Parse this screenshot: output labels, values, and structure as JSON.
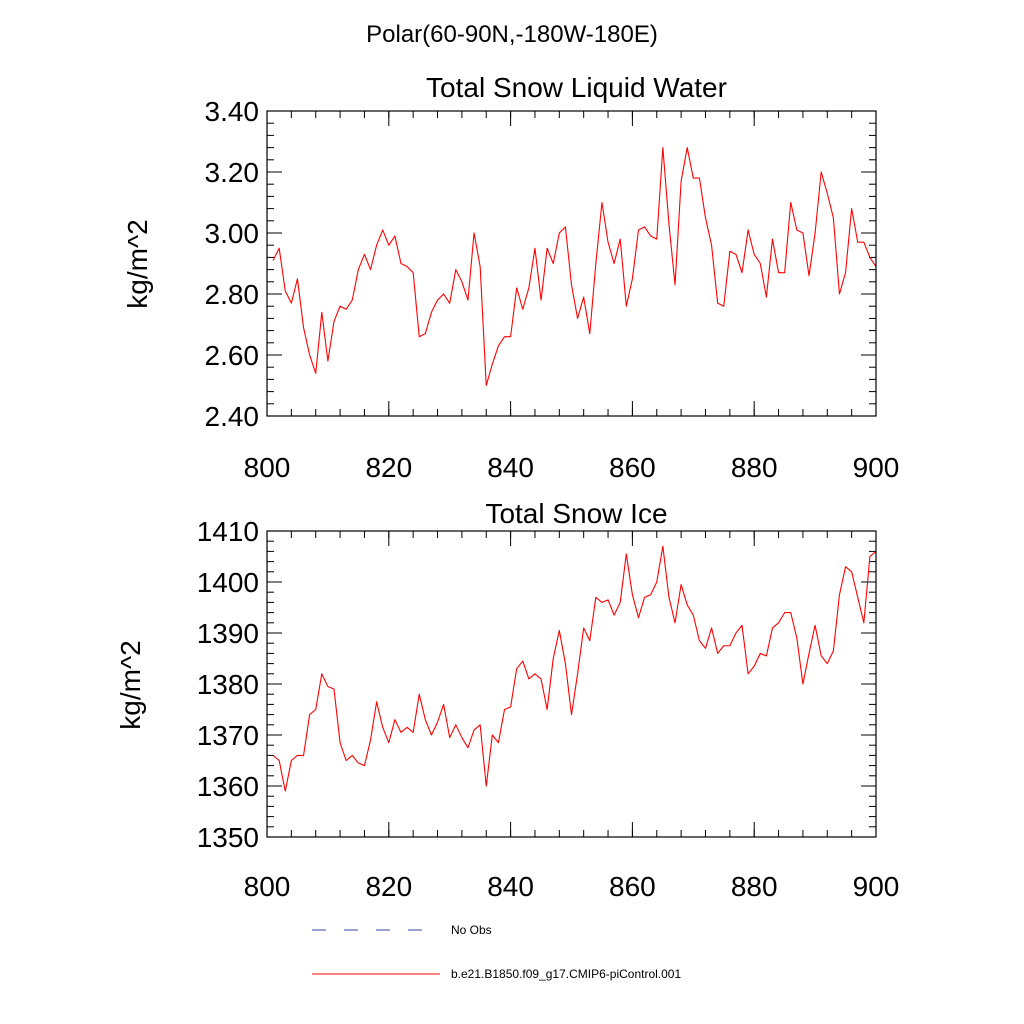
{
  "page_title": "Polar(60-90N,-180W-180E)",
  "colors": {
    "series": "#ff0000",
    "obs": "#3b3bb0",
    "axis": "#000000"
  },
  "legend": {
    "obs_label": "No Obs",
    "model_label": "b.e21.B1850.f09_g17.CMIP6-piControl.001"
  },
  "chart_data": [
    {
      "type": "line",
      "title": "Total Snow Liquid Water",
      "xlabel": "",
      "ylabel": "kg/m^2",
      "xlim": [
        800,
        900
      ],
      "ylim": [
        2.4,
        3.4
      ],
      "xticks": [
        800,
        820,
        840,
        860,
        880,
        900
      ],
      "xtick_labels": [
        "800",
        "820",
        "840",
        "860",
        "880",
        "900"
      ],
      "yticks": [
        2.4,
        2.6,
        2.8,
        3.0,
        3.2,
        3.4
      ],
      "ytick_labels": [
        "2.40",
        "2.60",
        "2.80",
        "3.00",
        "3.20",
        "3.40"
      ],
      "series": [
        {
          "name": "b.e21.B1850.f09_g17.CMIP6-piControl.001",
          "x": [
            801,
            802,
            803,
            804,
            805,
            806,
            807,
            808,
            809,
            810,
            811,
            812,
            813,
            814,
            815,
            816,
            817,
            818,
            819,
            820,
            821,
            822,
            823,
            824,
            825,
            826,
            827,
            828,
            829,
            830,
            831,
            832,
            833,
            834,
            835,
            836,
            837,
            838,
            839,
            840,
            841,
            842,
            843,
            844,
            845,
            846,
            847,
            848,
            849,
            850,
            851,
            852,
            853,
            854,
            855,
            856,
            857,
            858,
            859,
            860,
            861,
            862,
            863,
            864,
            865,
            866,
            867,
            868,
            869,
            870,
            871,
            872,
            873,
            874,
            875,
            876,
            877,
            878,
            879,
            880,
            881,
            882,
            883,
            884,
            885,
            886,
            887,
            888,
            889,
            890,
            891,
            892,
            893,
            894,
            895,
            896,
            897,
            898,
            899,
            900
          ],
          "values": [
            2.91,
            2.95,
            2.81,
            2.77,
            2.85,
            2.69,
            2.6,
            2.54,
            2.74,
            2.58,
            2.71,
            2.76,
            2.75,
            2.78,
            2.88,
            2.93,
            2.88,
            2.96,
            3.01,
            2.96,
            2.99,
            2.9,
            2.89,
            2.87,
            2.66,
            2.67,
            2.74,
            2.78,
            2.8,
            2.77,
            2.88,
            2.84,
            2.78,
            3.0,
            2.89,
            2.5,
            2.57,
            2.63,
            2.66,
            2.66,
            2.82,
            2.75,
            2.82,
            2.95,
            2.78,
            2.95,
            2.9,
            3.0,
            3.02,
            2.83,
            2.72,
            2.79,
            2.67,
            2.9,
            3.1,
            2.97,
            2.9,
            2.98,
            2.76,
            2.85,
            3.01,
            3.02,
            2.99,
            2.98,
            3.28,
            3.03,
            2.83,
            3.17,
            3.28,
            3.18,
            3.18,
            3.05,
            2.96,
            2.77,
            2.76,
            2.94,
            2.93,
            2.87,
            3.01,
            2.93,
            2.9,
            2.79,
            2.98,
            2.87,
            2.87,
            3.1,
            3.01,
            3.0,
            2.86,
            3.0,
            3.2,
            3.13,
            3.05,
            2.8,
            2.87,
            3.08,
            2.97,
            2.97,
            2.92,
            2.89
          ]
        }
      ]
    },
    {
      "type": "line",
      "title": "Total Snow Ice",
      "xlabel": "",
      "ylabel": "kg/m^2",
      "xlim": [
        800,
        900
      ],
      "ylim": [
        1350,
        1410
      ],
      "xticks": [
        800,
        820,
        840,
        860,
        880,
        900
      ],
      "xtick_labels": [
        "800",
        "820",
        "840",
        "860",
        "880",
        "900"
      ],
      "yticks": [
        1350,
        1360,
        1370,
        1380,
        1390,
        1400,
        1410
      ],
      "ytick_labels": [
        "1350",
        "1360",
        "1370",
        "1380",
        "1390",
        "1400",
        "1410"
      ],
      "series": [
        {
          "name": "b.e21.B1850.f09_g17.CMIP6-piControl.001",
          "x": [
            801,
            802,
            803,
            804,
            805,
            806,
            807,
            808,
            809,
            810,
            811,
            812,
            813,
            814,
            815,
            816,
            817,
            818,
            819,
            820,
            821,
            822,
            823,
            824,
            825,
            826,
            827,
            828,
            829,
            830,
            831,
            832,
            833,
            834,
            835,
            836,
            837,
            838,
            839,
            840,
            841,
            842,
            843,
            844,
            845,
            846,
            847,
            848,
            849,
            850,
            851,
            852,
            853,
            854,
            855,
            856,
            857,
            858,
            859,
            860,
            861,
            862,
            863,
            864,
            865,
            866,
            867,
            868,
            869,
            870,
            871,
            872,
            873,
            874,
            875,
            876,
            877,
            878,
            879,
            880,
            881,
            882,
            883,
            884,
            885,
            886,
            887,
            888,
            889,
            890,
            891,
            892,
            893,
            894,
            895,
            896,
            897,
            898,
            899,
            900
          ],
          "values": [
            1366,
            1365,
            1359,
            1365,
            1366,
            1366,
            1374,
            1375,
            1382,
            1379.5,
            1379,
            1368.5,
            1365,
            1366,
            1364.5,
            1364,
            1369,
            1376.5,
            1371.5,
            1368.5,
            1373,
            1370.5,
            1371.5,
            1370.5,
            1378,
            1373,
            1370,
            1372.5,
            1376,
            1369.5,
            1372,
            1369.5,
            1367.5,
            1371,
            1372,
            1360,
            1370,
            1368.5,
            1375,
            1375.5,
            1383,
            1384.5,
            1381,
            1382,
            1381,
            1375,
            1385,
            1390.5,
            1384,
            1374,
            1382,
            1391,
            1388.5,
            1397,
            1396,
            1396.5,
            1393.5,
            1396,
            1405.5,
            1397.5,
            1393,
            1397,
            1397.5,
            1400,
            1407,
            1397,
            1392,
            1399.5,
            1395.5,
            1393.5,
            1388.5,
            1387,
            1391,
            1386,
            1387.5,
            1387.5,
            1390,
            1391.5,
            1382,
            1383.5,
            1386,
            1385.5,
            1391,
            1392,
            1394,
            1394,
            1389,
            1380,
            1386,
            1391.5,
            1385.5,
            1384,
            1386.5,
            1397.5,
            1403,
            1402,
            1397,
            1392,
            1405,
            1406
          ]
        }
      ]
    }
  ]
}
